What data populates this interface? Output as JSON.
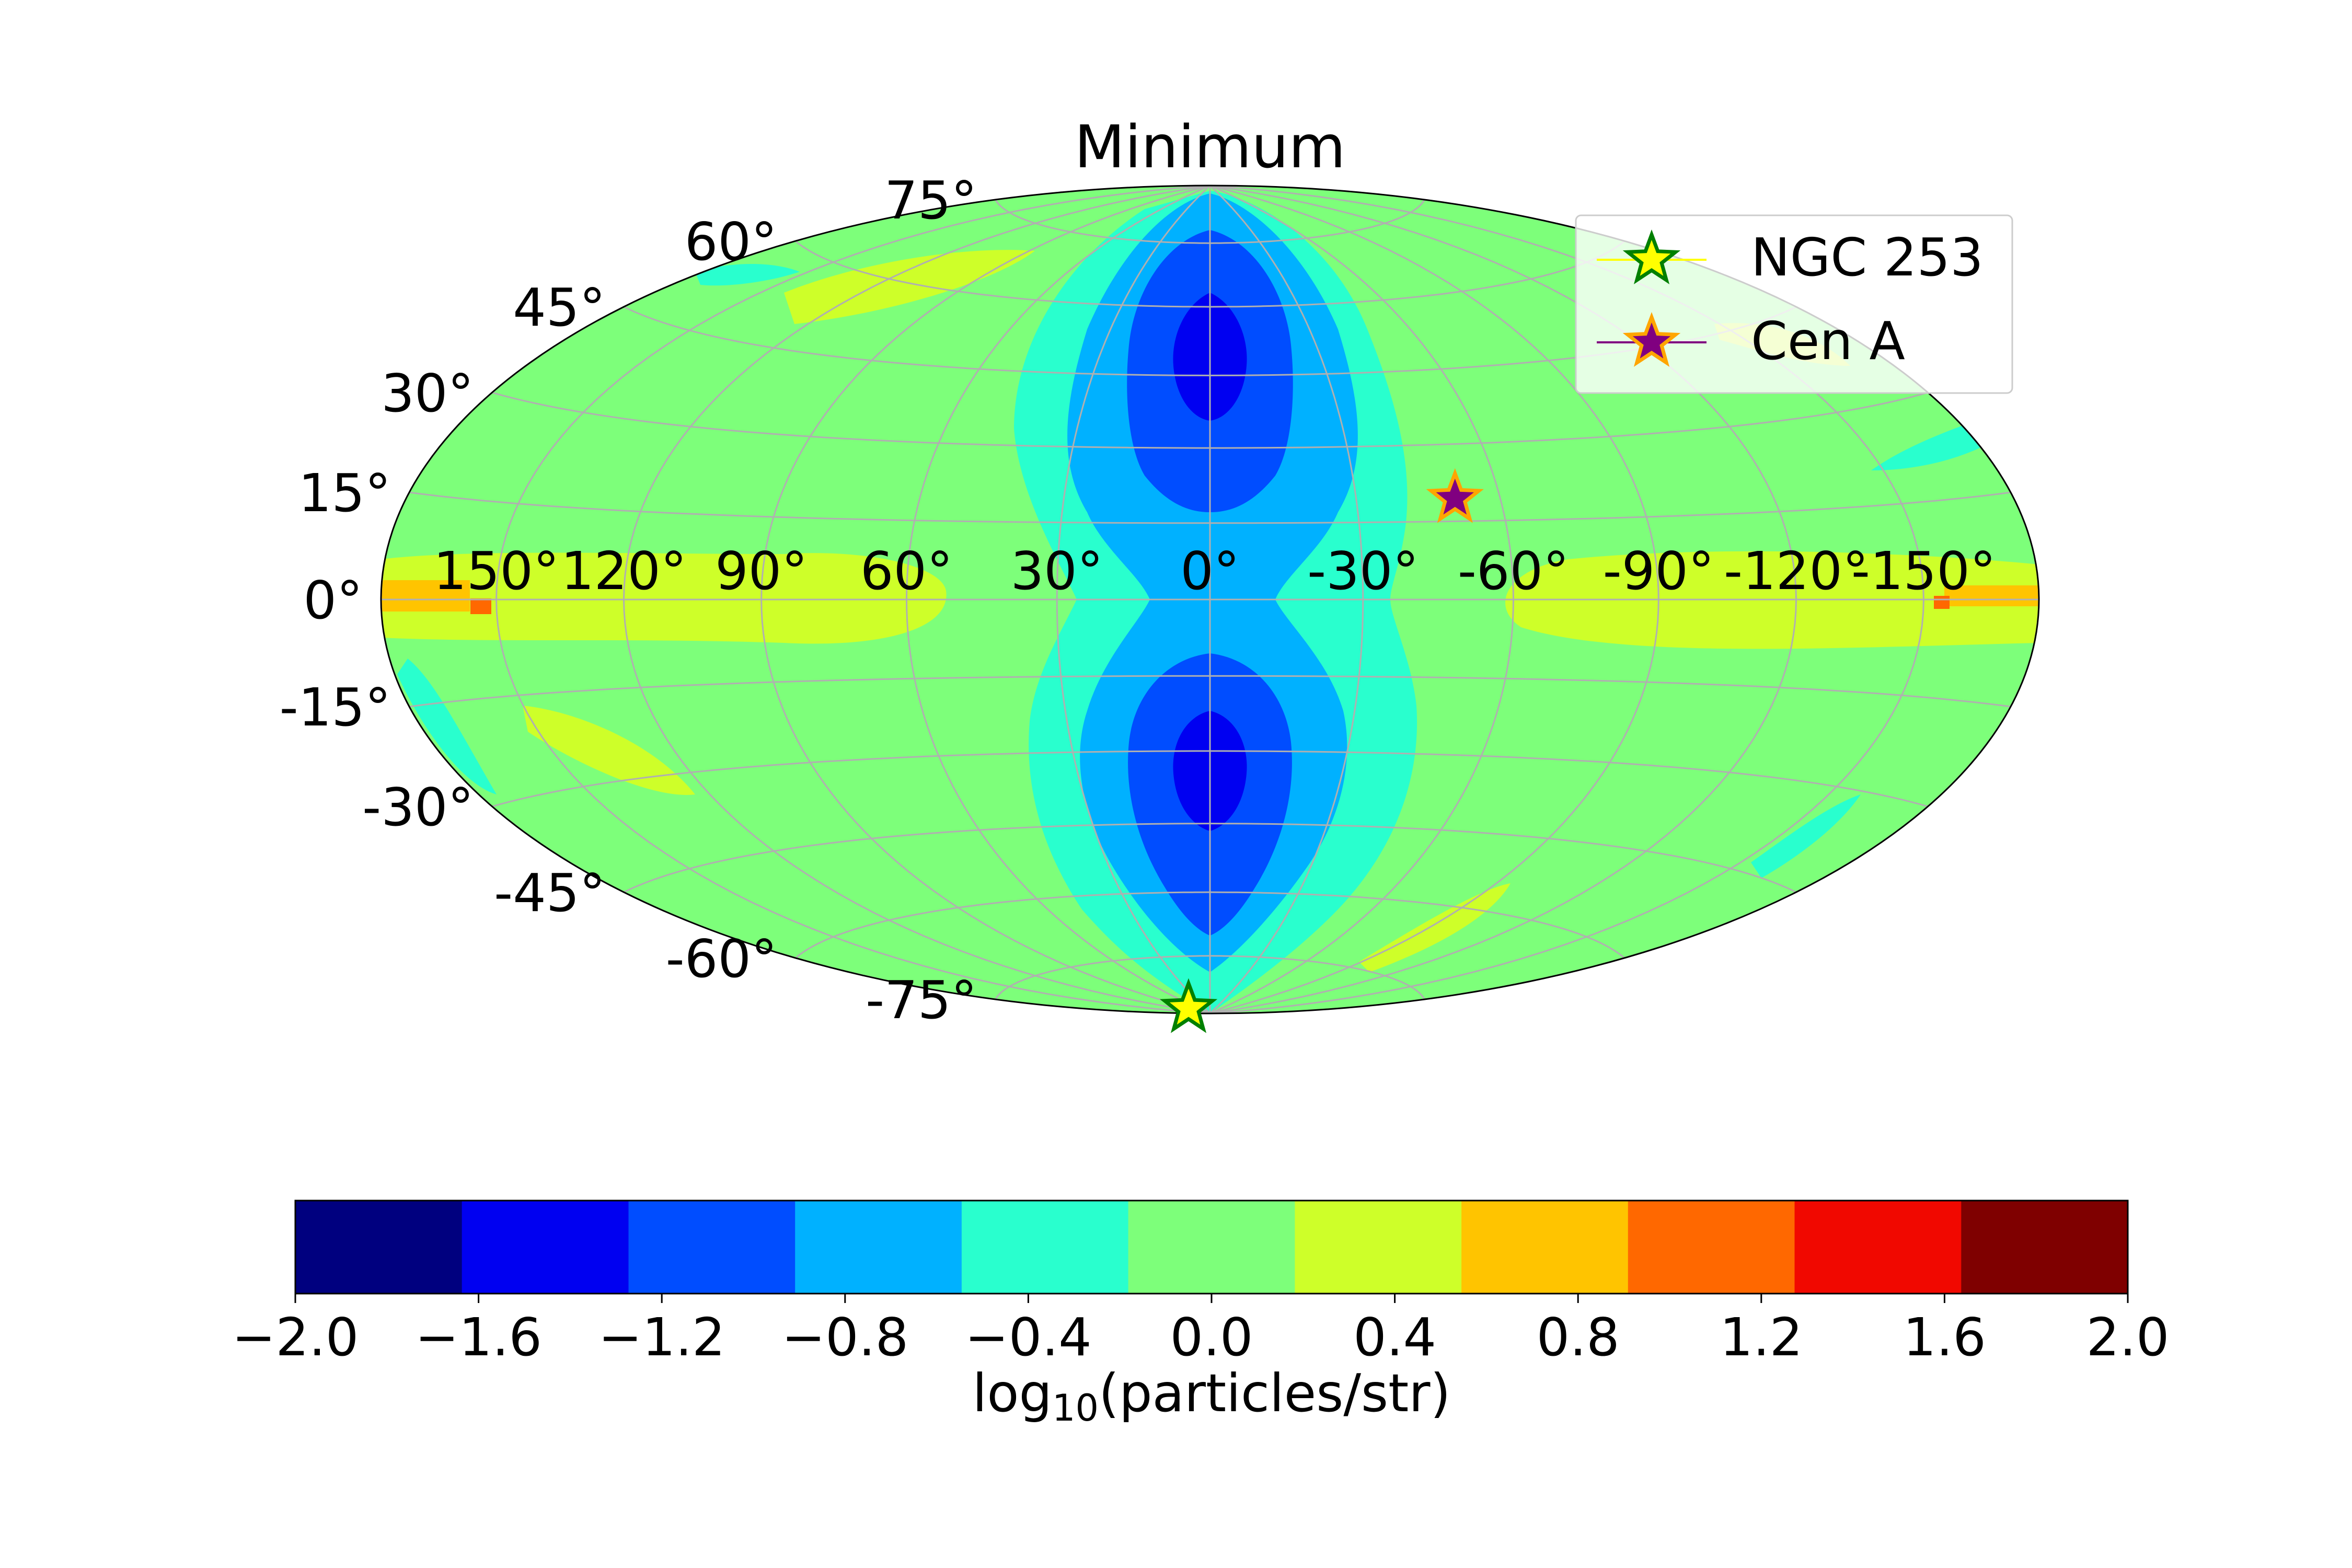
{
  "chart_data": {
    "type": "heatmap",
    "projection": "hammer-aitoff (galactic sky map)",
    "title": "Minimum",
    "longitude_ticks": [
      "150°",
      "120°",
      "90°",
      "60°",
      "30°",
      "0°",
      "-30°",
      "-60°",
      "-90°",
      "-120°",
      "-150°"
    ],
    "longitude_values": [
      150,
      120,
      90,
      60,
      30,
      0,
      -30,
      -60,
      -90,
      -120,
      -150
    ],
    "latitude_ticks": [
      "75°",
      "60°",
      "45°",
      "30°",
      "15°",
      "0°",
      "-15°",
      "-30°",
      "-45°",
      "-60°",
      "-75°"
    ],
    "latitude_values": [
      75,
      60,
      45,
      30,
      15,
      0,
      -15,
      -30,
      -45,
      -60,
      -75
    ],
    "grid": true,
    "colorbar": {
      "label_prefix": "log",
      "label_sub": "10",
      "label_suffix": "(particles/str)",
      "ticks": [
        "−2.0",
        "−1.6",
        "−1.2",
        "−0.8",
        "−0.4",
        "0.0",
        "0.4",
        "0.8",
        "1.2",
        "1.6",
        "2.0"
      ],
      "range": [
        -2.0,
        2.0
      ],
      "bins": 11,
      "colors": [
        "#00007f",
        "#0000f1",
        "#004dff",
        "#00b1ff",
        "#29ffce",
        "#7dff7a",
        "#ceff29",
        "#ffc400",
        "#ff6800",
        "#f10800",
        "#7f0000"
      ]
    },
    "legend": {
      "placement": "top-right",
      "entries": [
        {
          "label": "NGC 253",
          "marker": "star",
          "face_color": "#ffff00",
          "edge_color": "#008000",
          "line_color": "#ffff00"
        },
        {
          "label": "Cen A",
          "marker": "star",
          "face_color": "#800080",
          "edge_color": "#ffa500",
          "line_color": "#800080"
        }
      ]
    },
    "sources": [
      {
        "name": "NGC 253",
        "longitude": 97,
        "latitude": -88
      },
      {
        "name": "Cen A",
        "longitude": -50.5,
        "latitude": 19.4
      }
    ],
    "value_regions": {
      "background_level": 0.0,
      "galactic_center_band_levels": [
        -0.4,
        -0.8,
        -1.2,
        -1.6
      ],
      "galactic_plane_levels": [
        0.4,
        0.8
      ]
    }
  }
}
